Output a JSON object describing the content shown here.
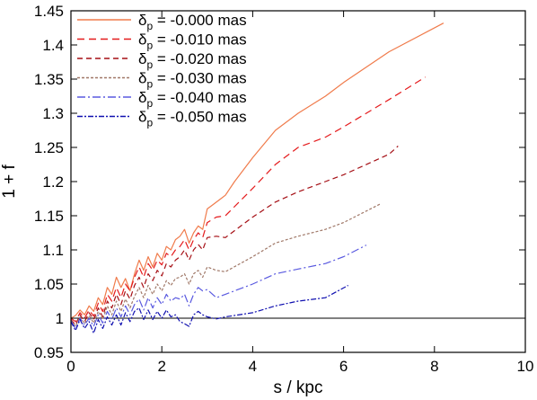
{
  "chart_data": {
    "type": "line",
    "title": "",
    "xlabel": "s / kpc",
    "ylabel": "1 + f",
    "xlim": [
      0,
      10
    ],
    "ylim": [
      0.95,
      1.45
    ],
    "x_ticks": [
      "0",
      "2",
      "4",
      "6",
      "8",
      "10"
    ],
    "y_ticks": [
      "0.95",
      "1",
      "1.05",
      "1.1",
      "1.15",
      "1.2",
      "1.25",
      "1.3",
      "1.35",
      "1.4",
      "1.45"
    ],
    "reference_line": 1.0,
    "grid": false,
    "legend_position": "top-left",
    "series": [
      {
        "name_main": "δ",
        "name_sub": "p",
        "name_rest": " = -0.000 mas",
        "color": "#f07b4b",
        "dash": "solid",
        "points": [
          [
            0.0,
            1.0
          ],
          [
            0.1,
            1.004
          ],
          [
            0.2,
            1.012
          ],
          [
            0.3,
            1.005
          ],
          [
            0.4,
            1.018
          ],
          [
            0.5,
            1.01
          ],
          [
            0.6,
            1.03
          ],
          [
            0.7,
            1.02
          ],
          [
            0.8,
            1.045
          ],
          [
            0.9,
            1.035
          ],
          [
            1.0,
            1.06
          ],
          [
            1.1,
            1.045
          ],
          [
            1.2,
            1.058
          ],
          [
            1.3,
            1.04
          ],
          [
            1.4,
            1.065
          ],
          [
            1.5,
            1.085
          ],
          [
            1.6,
            1.07
          ],
          [
            1.7,
            1.09
          ],
          [
            1.8,
            1.075
          ],
          [
            1.9,
            1.095
          ],
          [
            2.0,
            1.085
          ],
          [
            2.1,
            1.105
          ],
          [
            2.2,
            1.1
          ],
          [
            2.3,
            1.115
          ],
          [
            2.4,
            1.12
          ],
          [
            2.5,
            1.13
          ],
          [
            2.6,
            1.11
          ],
          [
            2.7,
            1.125
          ],
          [
            2.8,
            1.135
          ],
          [
            2.9,
            1.13
          ],
          [
            3.0,
            1.16
          ],
          [
            3.1,
            1.165
          ],
          [
            3.3,
            1.175
          ],
          [
            3.4,
            1.18
          ],
          [
            3.6,
            1.2
          ],
          [
            4.0,
            1.235
          ],
          [
            4.5,
            1.275
          ],
          [
            5.0,
            1.3
          ],
          [
            5.6,
            1.325
          ],
          [
            6.0,
            1.345
          ],
          [
            7.0,
            1.39
          ],
          [
            8.2,
            1.432
          ]
        ]
      },
      {
        "name_main": "δ",
        "name_sub": "p",
        "name_rest": " = -0.010 mas",
        "color": "#e41a1c",
        "dash": "8,5",
        "points": [
          [
            0.0,
            1.0
          ],
          [
            0.1,
            0.995
          ],
          [
            0.2,
            1.008
          ],
          [
            0.3,
            1.0
          ],
          [
            0.4,
            1.012
          ],
          [
            0.5,
            1.003
          ],
          [
            0.6,
            1.022
          ],
          [
            0.7,
            1.01
          ],
          [
            0.8,
            1.035
          ],
          [
            0.9,
            1.025
          ],
          [
            1.0,
            1.045
          ],
          [
            1.1,
            1.03
          ],
          [
            1.2,
            1.05
          ],
          [
            1.3,
            1.04
          ],
          [
            1.4,
            1.06
          ],
          [
            1.5,
            1.075
          ],
          [
            1.6,
            1.06
          ],
          [
            1.7,
            1.08
          ],
          [
            1.8,
            1.07
          ],
          [
            1.9,
            1.085
          ],
          [
            2.0,
            1.078
          ],
          [
            2.1,
            1.095
          ],
          [
            2.2,
            1.09
          ],
          [
            2.3,
            1.1
          ],
          [
            2.4,
            1.105
          ],
          [
            2.5,
            1.115
          ],
          [
            2.6,
            1.1
          ],
          [
            2.7,
            1.115
          ],
          [
            2.8,
            1.125
          ],
          [
            2.9,
            1.118
          ],
          [
            3.0,
            1.14
          ],
          [
            3.2,
            1.148
          ],
          [
            3.4,
            1.15
          ],
          [
            4.0,
            1.19
          ],
          [
            4.5,
            1.225
          ],
          [
            5.0,
            1.25
          ],
          [
            5.6,
            1.265
          ],
          [
            6.0,
            1.28
          ],
          [
            7.0,
            1.32
          ],
          [
            7.8,
            1.353
          ]
        ]
      },
      {
        "name_main": "δ",
        "name_sub": "p",
        "name_rest": " = -0.020 mas",
        "color": "#a50f15",
        "dash": "6,4",
        "points": [
          [
            0.0,
            0.998
          ],
          [
            0.1,
            0.99
          ],
          [
            0.2,
            1.005
          ],
          [
            0.3,
            0.995
          ],
          [
            0.4,
            1.008
          ],
          [
            0.5,
            0.998
          ],
          [
            0.6,
            1.015
          ],
          [
            0.7,
            1.002
          ],
          [
            0.8,
            1.025
          ],
          [
            0.9,
            1.015
          ],
          [
            1.0,
            1.035
          ],
          [
            1.1,
            1.02
          ],
          [
            1.2,
            1.04
          ],
          [
            1.3,
            1.028
          ],
          [
            1.4,
            1.048
          ],
          [
            1.5,
            1.06
          ],
          [
            1.6,
            1.045
          ],
          [
            1.7,
            1.065
          ],
          [
            1.8,
            1.055
          ],
          [
            1.9,
            1.07
          ],
          [
            2.0,
            1.062
          ],
          [
            2.1,
            1.08
          ],
          [
            2.2,
            1.075
          ],
          [
            2.3,
            1.085
          ],
          [
            2.4,
            1.09
          ],
          [
            2.5,
            1.1
          ],
          [
            2.6,
            1.085
          ],
          [
            2.7,
            1.1
          ],
          [
            2.8,
            1.108
          ],
          [
            2.9,
            1.1
          ],
          [
            3.0,
            1.118
          ],
          [
            3.2,
            1.12
          ],
          [
            3.4,
            1.118
          ],
          [
            4.0,
            1.148
          ],
          [
            4.5,
            1.17
          ],
          [
            5.0,
            1.185
          ],
          [
            5.6,
            1.2
          ],
          [
            6.0,
            1.21
          ],
          [
            7.0,
            1.24
          ],
          [
            7.2,
            1.252
          ]
        ]
      },
      {
        "name_main": "δ",
        "name_sub": "p",
        "name_rest": " = -0.030 mas",
        "color": "#a07868",
        "dash": "3,2",
        "points": [
          [
            0.0,
            0.997
          ],
          [
            0.1,
            0.988
          ],
          [
            0.2,
            1.002
          ],
          [
            0.3,
            0.992
          ],
          [
            0.4,
            1.004
          ],
          [
            0.5,
            0.993
          ],
          [
            0.6,
            1.01
          ],
          [
            0.7,
            0.998
          ],
          [
            0.8,
            1.018
          ],
          [
            0.9,
            1.005
          ],
          [
            1.0,
            1.025
          ],
          [
            1.1,
            1.01
          ],
          [
            1.2,
            1.028
          ],
          [
            1.3,
            1.015
          ],
          [
            1.4,
            1.032
          ],
          [
            1.5,
            1.045
          ],
          [
            1.6,
            1.03
          ],
          [
            1.7,
            1.048
          ],
          [
            1.8,
            1.035
          ],
          [
            1.9,
            1.05
          ],
          [
            2.0,
            1.04
          ],
          [
            2.1,
            1.055
          ],
          [
            2.2,
            1.048
          ],
          [
            2.3,
            1.058
          ],
          [
            2.4,
            1.06
          ],
          [
            2.5,
            1.065
          ],
          [
            2.6,
            1.05
          ],
          [
            2.7,
            1.065
          ],
          [
            2.8,
            1.07
          ],
          [
            2.9,
            1.06
          ],
          [
            3.0,
            1.075
          ],
          [
            3.2,
            1.07
          ],
          [
            3.4,
            1.068
          ],
          [
            4.0,
            1.09
          ],
          [
            4.5,
            1.11
          ],
          [
            5.0,
            1.12
          ],
          [
            5.6,
            1.13
          ],
          [
            6.0,
            1.14
          ],
          [
            6.8,
            1.167
          ]
        ]
      },
      {
        "name_main": "δ",
        "name_sub": "p",
        "name_rest": " = -0.040 mas",
        "color": "#5a5ae0",
        "dash": "9,3,2,3",
        "points": [
          [
            0.0,
            0.996
          ],
          [
            0.1,
            0.985
          ],
          [
            0.2,
            1.0
          ],
          [
            0.3,
            0.99
          ],
          [
            0.4,
            1.0
          ],
          [
            0.5,
            0.988
          ],
          [
            0.6,
            1.005
          ],
          [
            0.7,
            0.993
          ],
          [
            0.8,
            1.01
          ],
          [
            0.9,
            0.998
          ],
          [
            1.0,
            1.015
          ],
          [
            1.1,
            1.002
          ],
          [
            1.2,
            1.018
          ],
          [
            1.3,
            1.005
          ],
          [
            1.4,
            1.02
          ],
          [
            1.5,
            1.028
          ],
          [
            1.6,
            1.012
          ],
          [
            1.7,
            1.03
          ],
          [
            1.8,
            1.015
          ],
          [
            1.9,
            1.03
          ],
          [
            2.0,
            1.02
          ],
          [
            2.1,
            1.035
          ],
          [
            2.2,
            1.025
          ],
          [
            2.3,
            1.03
          ],
          [
            2.4,
            1.028
          ],
          [
            2.5,
            1.035
          ],
          [
            2.6,
            1.018
          ],
          [
            2.7,
            1.035
          ],
          [
            2.8,
            1.045
          ],
          [
            2.9,
            1.04
          ],
          [
            3.0,
            1.042
          ],
          [
            3.2,
            1.03
          ],
          [
            3.4,
            1.035
          ],
          [
            4.0,
            1.05
          ],
          [
            4.5,
            1.065
          ],
          [
            5.0,
            1.072
          ],
          [
            5.6,
            1.08
          ],
          [
            6.0,
            1.09
          ],
          [
            6.5,
            1.107
          ]
        ]
      },
      {
        "name_main": "δ",
        "name_sub": "p",
        "name_rest": " = -0.050 mas",
        "color": "#1010b0",
        "dash": "6,2,2,2",
        "points": [
          [
            0.0,
            0.995
          ],
          [
            0.1,
            0.982
          ],
          [
            0.2,
            0.998
          ],
          [
            0.3,
            0.985
          ],
          [
            0.4,
            0.995
          ],
          [
            0.5,
            0.978
          ],
          [
            0.6,
            0.998
          ],
          [
            0.7,
            0.985
          ],
          [
            0.8,
            1.002
          ],
          [
            0.9,
            0.99
          ],
          [
            1.0,
            1.005
          ],
          [
            1.1,
            0.99
          ],
          [
            1.2,
            1.008
          ],
          [
            1.3,
            0.995
          ],
          [
            1.4,
            1.01
          ],
          [
            1.5,
            1.015
          ],
          [
            1.6,
            0.998
          ],
          [
            1.7,
            1.012
          ],
          [
            1.8,
            0.998
          ],
          [
            1.9,
            1.01
          ],
          [
            2.0,
            1.0
          ],
          [
            2.1,
            1.012
          ],
          [
            2.2,
            1.002
          ],
          [
            2.3,
            1.005
          ],
          [
            2.4,
            0.995
          ],
          [
            2.5,
            0.992
          ],
          [
            2.6,
            0.988
          ],
          [
            2.7,
            1.005
          ],
          [
            2.8,
            1.01
          ],
          [
            2.9,
            1.005
          ],
          [
            3.0,
            1.002
          ],
          [
            3.2,
            0.999
          ],
          [
            3.4,
            1.002
          ],
          [
            4.0,
            1.008
          ],
          [
            4.5,
            1.018
          ],
          [
            5.0,
            1.025
          ],
          [
            5.6,
            1.03
          ],
          [
            6.1,
            1.048
          ]
        ]
      }
    ]
  }
}
